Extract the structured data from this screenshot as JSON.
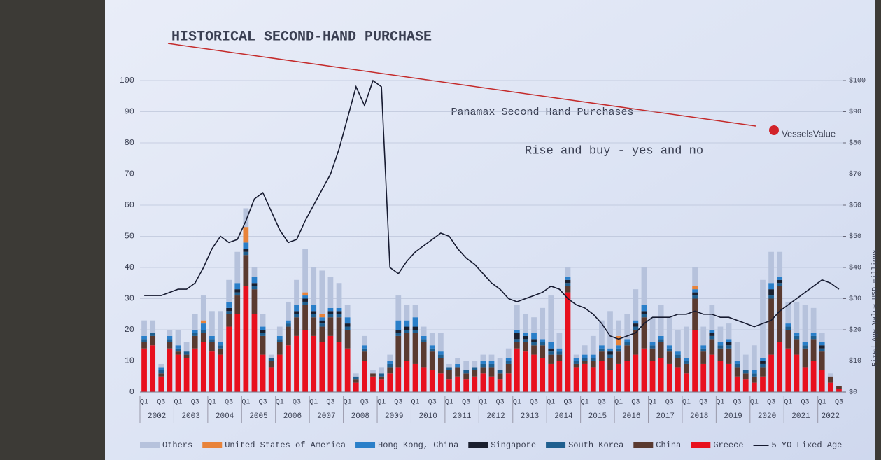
{
  "chart_data": {
    "type": "bar",
    "title": "HISTORICAL SECOND-HAND PURCHASE",
    "subtitle": "Panamax Second Hand Purchases",
    "annotation": "Rise and buy - yes and no",
    "brand": "VesselsValue",
    "y2_label": "Fixed Age Value USD millions",
    "stacked": true,
    "categories": [
      "Q1",
      null,
      "Q3",
      null,
      "Q1",
      null,
      "Q3",
      null,
      "Q1",
      null,
      "Q3",
      null,
      "Q1",
      null,
      "Q3",
      null,
      "Q1",
      null,
      "Q3",
      null,
      "Q1",
      null,
      "Q3",
      null,
      "Q1",
      null,
      "Q3",
      null,
      "Q1",
      null,
      "Q3",
      null,
      "Q1",
      null,
      "Q3",
      null,
      "Q1",
      null,
      "Q3",
      null,
      "Q1",
      null,
      "Q3",
      null,
      "Q1",
      null,
      "Q3",
      null,
      "Q1",
      null,
      "Q3",
      null,
      "Q1",
      null,
      "Q3",
      null,
      "Q1",
      null,
      "Q3",
      null,
      "Q1",
      null,
      "Q3",
      null,
      "Q1",
      null,
      "Q3",
      null,
      "Q1",
      null,
      "Q3",
      null,
      "Q1",
      null,
      "Q3",
      null,
      "Q1",
      null,
      "Q3",
      null,
      "Q1",
      null,
      "Q3"
    ],
    "years": [
      "2002",
      "2003",
      "2004",
      "2005",
      "2006",
      "2007",
      "2008",
      "2009",
      "2010",
      "2011",
      "2012",
      "2013",
      "2014",
      "2015",
      "2016",
      "2017",
      "2018",
      "2019",
      "2020",
      "2021",
      "2022"
    ],
    "ylim": [
      0,
      100
    ],
    "yticks": [
      0,
      10,
      20,
      30,
      40,
      50,
      60,
      70,
      80,
      90,
      100
    ],
    "y2lim": [
      0,
      100
    ],
    "y2ticks": [
      {
        "value": 0,
        "label": "$0"
      },
      {
        "value": 10,
        "label": "$10"
      },
      {
        "value": 20,
        "label": "$20"
      },
      {
        "value": 30,
        "label": "$30"
      },
      {
        "value": 40,
        "label": "$40"
      },
      {
        "value": 50,
        "label": "$50"
      },
      {
        "value": 60,
        "label": "$60"
      },
      {
        "value": 70,
        "label": "$70"
      },
      {
        "value": 80,
        "label": "$80"
      },
      {
        "value": 90,
        "label": "$90"
      },
      {
        "value": 100,
        "label": "$100"
      }
    ],
    "legend": "bottom",
    "series": [
      {
        "name": "Others",
        "color": "#b6c2dc",
        "values": [
          5,
          4,
          1,
          2,
          5,
          3,
          5,
          8,
          8,
          10,
          7,
          10,
          6,
          3,
          4,
          1,
          3,
          6,
          8,
          14,
          12,
          14,
          10,
          8,
          4,
          1,
          3,
          1,
          2,
          2,
          8,
          5,
          4,
          3,
          4,
          6,
          1,
          2,
          3,
          2,
          2,
          2,
          4,
          3,
          8,
          6,
          5,
          10,
          15,
          5,
          3,
          1,
          3,
          6,
          8,
          12,
          5,
          8,
          10,
          12,
          8,
          10,
          9,
          7,
          10,
          6,
          6,
          8,
          5,
          5,
          6,
          5,
          8,
          25,
          10,
          8,
          7,
          10,
          12,
          8,
          3,
          1,
          0
        ]
      },
      {
        "name": "United States of America",
        "color": "#e8833a",
        "values": [
          0,
          0,
          0,
          0,
          0,
          0,
          0,
          1,
          0,
          0,
          0,
          0,
          5,
          0,
          0,
          0,
          0,
          0,
          0,
          1,
          0,
          1,
          0,
          0,
          0,
          0,
          0,
          0,
          0,
          0,
          0,
          0,
          0,
          0,
          0,
          0,
          0,
          0,
          0,
          0,
          0,
          0,
          0,
          0,
          0,
          0,
          0,
          0,
          0,
          0,
          0,
          0,
          0,
          0,
          0,
          0,
          3,
          0,
          0,
          0,
          0,
          0,
          0,
          0,
          0,
          1,
          0,
          0,
          0,
          0,
          0,
          0,
          0,
          0,
          0,
          0,
          0,
          0,
          0,
          0,
          0,
          0,
          0
        ]
      },
      {
        "name": "Hong Kong, China",
        "color": "#2a7fc9",
        "values": [
          1,
          0,
          1,
          1,
          1,
          0,
          1,
          2,
          1,
          1,
          2,
          2,
          2,
          2,
          1,
          0,
          1,
          1,
          2,
          1,
          2,
          1,
          1,
          1,
          2,
          0,
          1,
          0,
          0,
          1,
          3,
          2,
          3,
          1,
          1,
          1,
          0,
          1,
          0,
          0,
          1,
          1,
          0,
          1,
          1,
          1,
          2,
          1,
          2,
          1,
          1,
          1,
          1,
          1,
          1,
          1,
          1,
          1,
          1,
          2,
          1,
          1,
          1,
          1,
          1,
          1,
          1,
          1,
          1,
          1,
          1,
          0,
          1,
          1,
          2,
          1,
          1,
          1,
          1,
          1,
          1,
          0,
          0
        ]
      },
      {
        "name": "Singapore",
        "color": "#1a1f2e",
        "values": [
          0,
          0,
          0,
          0,
          0,
          0,
          0,
          0,
          0,
          0,
          1,
          1,
          1,
          1,
          1,
          0,
          0,
          0,
          1,
          1,
          1,
          1,
          1,
          1,
          1,
          0,
          0,
          0,
          0,
          0,
          1,
          1,
          1,
          0,
          0,
          0,
          0,
          0,
          0,
          0,
          0,
          0,
          0,
          0,
          2,
          1,
          1,
          0,
          1,
          0,
          1,
          0,
          0,
          0,
          0,
          1,
          0,
          0,
          1,
          1,
          0,
          0,
          0,
          0,
          0,
          1,
          0,
          1,
          0,
          1,
          0,
          0,
          0,
          1,
          2,
          1,
          0,
          0,
          0,
          0,
          1,
          0,
          0
        ]
      },
      {
        "name": "South Korea",
        "color": "#1f5f8f",
        "values": [
          1,
          1,
          1,
          1,
          1,
          1,
          1,
          1,
          1,
          1,
          1,
          1,
          1,
          1,
          1,
          1,
          1,
          1,
          1,
          1,
          1,
          1,
          1,
          1,
          1,
          1,
          1,
          0,
          1,
          1,
          1,
          1,
          1,
          1,
          1,
          1,
          1,
          0,
          1,
          1,
          1,
          1,
          1,
          1,
          1,
          1,
          1,
          1,
          1,
          1,
          1,
          1,
          1,
          1,
          1,
          1,
          1,
          1,
          1,
          1,
          1,
          1,
          1,
          1,
          1,
          1,
          1,
          1,
          1,
          1,
          1,
          1,
          1,
          1,
          1,
          1,
          1,
          1,
          1,
          1,
          1,
          0,
          0
        ]
      },
      {
        "name": "China",
        "color": "#5a3a30",
        "values": [
          2,
          3,
          1,
          2,
          1,
          1,
          4,
          3,
          3,
          2,
          4,
          6,
          10,
          8,
          6,
          2,
          4,
          6,
          6,
          8,
          6,
          5,
          6,
          8,
          6,
          1,
          3,
          1,
          1,
          2,
          10,
          9,
          10,
          8,
          6,
          5,
          3,
          3,
          2,
          2,
          2,
          3,
          2,
          3,
          2,
          3,
          3,
          4,
          3,
          2,
          2,
          1,
          1,
          2,
          3,
          4,
          4,
          5,
          8,
          10,
          4,
          5,
          4,
          3,
          3,
          10,
          4,
          5,
          4,
          5,
          3,
          2,
          2,
          3,
          18,
          18,
          6,
          5,
          6,
          7,
          6,
          2,
          1
        ]
      },
      {
        "name": "Greece",
        "color": "#e8101e",
        "values": [
          14,
          15,
          5,
          14,
          12,
          11,
          14,
          16,
          13,
          12,
          21,
          25,
          34,
          25,
          12,
          8,
          12,
          15,
          18,
          20,
          18,
          16,
          18,
          16,
          14,
          3,
          10,
          5,
          4,
          6,
          8,
          10,
          9,
          8,
          7,
          6,
          4,
          5,
          4,
          5,
          6,
          5,
          4,
          6,
          14,
          13,
          12,
          11,
          9,
          10,
          32,
          8,
          9,
          8,
          10,
          7,
          9,
          10,
          12,
          14,
          10,
          11,
          9,
          8,
          6,
          20,
          9,
          12,
          10,
          9,
          5,
          4,
          3,
          5,
          12,
          16,
          14,
          12,
          8,
          10,
          7,
          3,
          1
        ]
      },
      {
        "name": "5 YO Fixed Age",
        "color": "#161a30",
        "type": "line",
        "axis": "y2",
        "values": [
          31,
          31,
          31,
          32,
          33,
          33,
          35,
          40,
          46,
          50,
          48,
          49,
          55,
          62,
          64,
          58,
          52,
          48,
          49,
          55,
          60,
          65,
          70,
          78,
          88,
          98,
          92,
          100,
          98,
          40,
          38,
          42,
          45,
          47,
          49,
          51,
          50,
          46,
          43,
          41,
          38,
          35,
          33,
          30,
          29,
          30,
          31,
          32,
          34,
          33,
          30,
          28,
          27,
          25,
          22,
          18,
          17,
          18,
          19,
          22,
          24,
          24,
          24,
          25,
          25,
          26,
          25,
          25,
          24,
          24,
          23,
          22,
          21,
          22,
          23,
          26,
          28,
          30,
          32,
          34,
          36,
          35,
          33
        ]
      }
    ]
  }
}
